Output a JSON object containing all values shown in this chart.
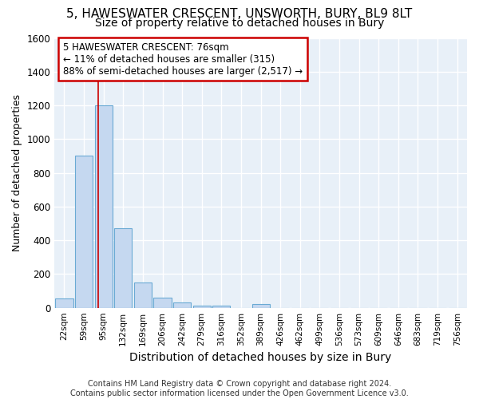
{
  "title_line1": "5, HAWESWATER CRESCENT, UNSWORTH, BURY, BL9 8LT",
  "title_line2": "Size of property relative to detached houses in Bury",
  "xlabel": "Distribution of detached houses by size in Bury",
  "ylabel": "Number of detached properties",
  "footer_line1": "Contains HM Land Registry data © Crown copyright and database right 2024.",
  "footer_line2": "Contains public sector information licensed under the Open Government Licence v3.0.",
  "categories": [
    "22sqm",
    "59sqm",
    "95sqm",
    "132sqm",
    "169sqm",
    "206sqm",
    "242sqm",
    "279sqm",
    "316sqm",
    "352sqm",
    "389sqm",
    "426sqm",
    "462sqm",
    "499sqm",
    "536sqm",
    "573sqm",
    "609sqm",
    "646sqm",
    "683sqm",
    "719sqm",
    "756sqm"
  ],
  "bar_values": [
    55,
    900,
    1200,
    470,
    150,
    60,
    30,
    15,
    15,
    0,
    20,
    0,
    0,
    0,
    0,
    0,
    0,
    0,
    0,
    0,
    0
  ],
  "bar_color": "#c5d8f0",
  "bar_edge_color": "#6aaad4",
  "property_line_x": 1.73,
  "annotation_text_line1": "5 HAWESWATER CRESCENT: 76sqm",
  "annotation_text_line2": "← 11% of detached houses are smaller (315)",
  "annotation_text_line3": "88% of semi-detached houses are larger (2,517) →",
  "annotation_box_facecolor": "#ffffff",
  "annotation_box_edgecolor": "#cc0000",
  "red_line_color": "#cc0000",
  "ylim": [
    0,
    1600
  ],
  "yticks": [
    0,
    200,
    400,
    600,
    800,
    1000,
    1200,
    1400,
    1600
  ],
  "background_color": "#ffffff",
  "plot_background_color": "#e8f0f8",
  "grid_color": "#ffffff",
  "title1_fontsize": 11,
  "title2_fontsize": 10,
  "ylabel_fontsize": 9,
  "xlabel_fontsize": 10,
  "footer_fontsize": 7,
  "annotation_fontsize": 8.5
}
